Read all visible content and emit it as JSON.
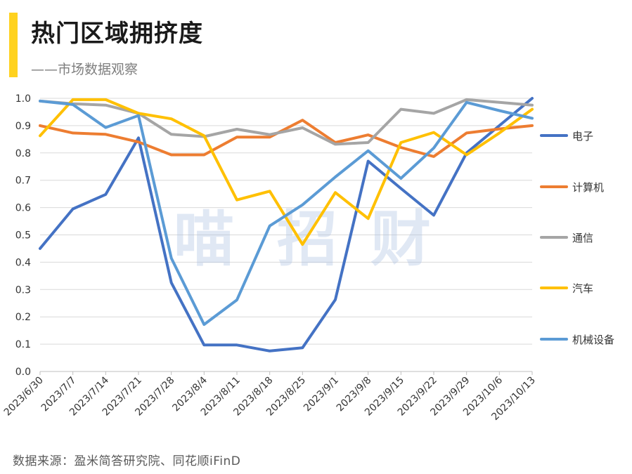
{
  "header": {
    "title": "热门区域拥挤度",
    "subtitle": "——市场数据观察",
    "accent_color": "#FFD21F"
  },
  "watermark": [
    "喵",
    "招",
    "财"
  ],
  "source": "数据来源：盈米简答研究院、同花顺iFinD",
  "chart_data": {
    "type": "line",
    "title": "热门区域拥挤度",
    "xlabel": "",
    "ylabel": "",
    "ylim": [
      0,
      1.0
    ],
    "yticks": [
      "0.0",
      "0.1",
      "0.2",
      "0.3",
      "0.4",
      "0.5",
      "0.6",
      "0.7",
      "0.8",
      "0.9",
      "1.0"
    ],
    "grid": true,
    "legend": "right",
    "categories": [
      "2023/6/30",
      "2023/7/7",
      "2023/7/14",
      "2023/7/21",
      "2023/7/28",
      "2023/8/4",
      "2023/8/11",
      "2023/8/18",
      "2023/8/25",
      "2023/9/1",
      "2023/9/8",
      "2023/9/15",
      "2023/9/22",
      "2023/9/29",
      "2023/10/6",
      "2023/10/13"
    ],
    "series": [
      {
        "name": "电子",
        "color": "#4472C4",
        "values": [
          0.45,
          0.595,
          0.648,
          0.855,
          0.325,
          0.097,
          0.097,
          0.075,
          0.087,
          0.263,
          0.77,
          0.67,
          0.572,
          0.8,
          0.9,
          1.0
        ]
      },
      {
        "name": "计算机",
        "color": "#ED7D31",
        "values": [
          0.9,
          0.873,
          0.868,
          0.84,
          0.793,
          0.793,
          0.858,
          0.858,
          0.92,
          0.838,
          0.866,
          0.82,
          0.787,
          0.873,
          0.888,
          0.9
        ]
      },
      {
        "name": "通信",
        "color": "#A5A5A5",
        "values": [
          0.99,
          0.98,
          0.975,
          0.945,
          0.868,
          0.86,
          0.887,
          0.867,
          0.892,
          0.832,
          0.838,
          0.96,
          0.945,
          0.995,
          0.985,
          0.975
        ]
      },
      {
        "name": "汽车",
        "color": "#FFC000",
        "values": [
          0.863,
          0.995,
          0.995,
          0.945,
          0.925,
          0.863,
          0.628,
          0.66,
          0.465,
          0.655,
          0.56,
          0.838,
          0.875,
          0.793,
          0.873,
          0.96
        ]
      },
      {
        "name": "机械设备",
        "color": "#5B9BD5",
        "values": [
          0.99,
          0.977,
          0.893,
          0.937,
          0.415,
          0.172,
          0.262,
          0.533,
          0.61,
          0.712,
          0.808,
          0.707,
          0.818,
          0.985,
          0.955,
          0.927
        ]
      }
    ]
  }
}
